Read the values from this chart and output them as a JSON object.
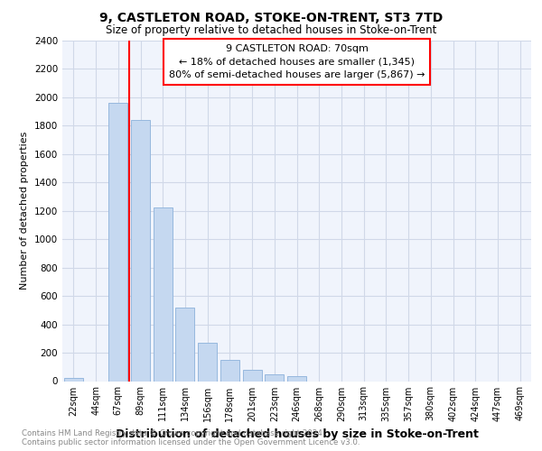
{
  "title_line1": "9, CASTLETON ROAD, STOKE-ON-TRENT, ST3 7TD",
  "title_line2": "Size of property relative to detached houses in Stoke-on-Trent",
  "xlabel": "Distribution of detached houses by size in Stoke-on-Trent",
  "ylabel": "Number of detached properties",
  "footnote1": "Contains HM Land Registry data © Crown copyright and database right 2024.",
  "footnote2": "Contains public sector information licensed under the Open Government Licence v3.0.",
  "bar_labels": [
    "22sqm",
    "44sqm",
    "67sqm",
    "89sqm",
    "111sqm",
    "134sqm",
    "156sqm",
    "178sqm",
    "201sqm",
    "223sqm",
    "246sqm",
    "268sqm",
    "290sqm",
    "313sqm",
    "335sqm",
    "357sqm",
    "380sqm",
    "402sqm",
    "424sqm",
    "447sqm",
    "469sqm"
  ],
  "bar_values": [
    25,
    0,
    1960,
    1840,
    1225,
    520,
    270,
    150,
    80,
    50,
    35,
    0,
    0,
    0,
    0,
    0,
    0,
    0,
    0,
    0,
    0
  ],
  "annotation_text1": "9 CASTLETON ROAD: 70sqm",
  "annotation_text2": "← 18% of detached houses are smaller (1,345)",
  "annotation_text3": "80% of semi-detached houses are larger (5,867) →",
  "bar_color": "#c5d8f0",
  "bar_edge_color": "#96b8de",
  "red_line_x": 2.5,
  "ylim": [
    0,
    2400
  ],
  "yticks": [
    0,
    200,
    400,
    600,
    800,
    1000,
    1200,
    1400,
    1600,
    1800,
    2000,
    2200,
    2400
  ],
  "bg_color": "#f0f4fc",
  "grid_color": "#d0d8e8"
}
